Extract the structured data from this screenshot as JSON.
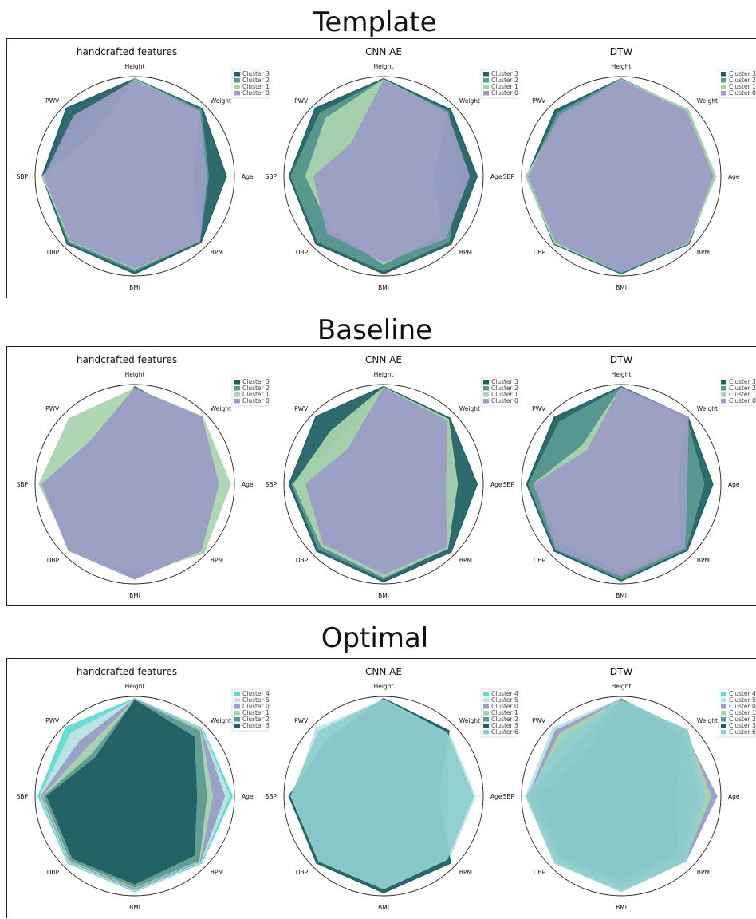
{
  "sections": [
    {
      "key": "template",
      "title": "Template"
    },
    {
      "key": "baseline",
      "title": "Baseline"
    },
    {
      "key": "optimal",
      "title": "Optimal"
    }
  ],
  "axes": [
    "Height",
    "Weight",
    "Age",
    "BPM",
    "BMI",
    "DBP",
    "SBP",
    "PWV"
  ],
  "colors": {
    "Cluster 0": "#9a9cc6",
    "Cluster 1": "#a9d4ad",
    "Cluster 2": "#5b9a92",
    "Cluster 3": "#1e5f63",
    "Cluster 4": "#5fdcd0",
    "Cluster 5": "#bfe3e6",
    "Cluster 6": "#8fcfd0"
  },
  "chart_data": [
    {
      "section": "template",
      "type": "radar",
      "title": "handcrafted features",
      "series": [
        {
          "name": "Cluster 3",
          "values": [
            0.98,
            0.96,
            0.92,
            0.94,
            0.98,
            0.96,
            0.93,
            0.97
          ]
        },
        {
          "name": "Cluster 2",
          "values": [
            0.98,
            0.94,
            0.74,
            0.92,
            0.95,
            0.94,
            0.92,
            0.78
          ]
        },
        {
          "name": "Cluster 1",
          "values": [
            0.97,
            0.92,
            0.58,
            0.92,
            0.93,
            0.92,
            0.93,
            0.58
          ]
        },
        {
          "name": "Cluster 0",
          "values": [
            0.96,
            0.92,
            0.72,
            0.92,
            0.92,
            0.91,
            0.91,
            0.86
          ]
        }
      ]
    },
    {
      "section": "template",
      "type": "radar",
      "title": "CNN AE",
      "series": [
        {
          "name": "Cluster 3",
          "values": [
            0.98,
            0.95,
            0.94,
            0.96,
            0.98,
            0.96,
            0.95,
            0.97
          ]
        },
        {
          "name": "Cluster 2",
          "values": [
            0.97,
            0.92,
            0.74,
            0.93,
            0.95,
            0.93,
            0.93,
            0.9
          ]
        },
        {
          "name": "Cluster 1",
          "values": [
            0.97,
            0.9,
            0.5,
            0.82,
            0.88,
            0.75,
            0.78,
            0.82
          ]
        },
        {
          "name": "Cluster 0",
          "values": [
            0.96,
            0.9,
            0.86,
            0.88,
            0.86,
            0.8,
            0.7,
            0.46
          ]
        }
      ]
    },
    {
      "section": "template",
      "type": "radar",
      "title": "DTW",
      "series": [
        {
          "name": "Cluster 3",
          "values": [
            0.98,
            0.94,
            0.94,
            0.96,
            0.98,
            0.96,
            0.95,
            0.94
          ]
        },
        {
          "name": "Cluster 2",
          "values": [
            0.98,
            0.93,
            0.93,
            0.95,
            0.97,
            0.95,
            0.94,
            0.9
          ]
        },
        {
          "name": "Cluster 1",
          "values": [
            0.97,
            0.95,
            0.95,
            0.95,
            0.96,
            0.95,
            0.96,
            0.85
          ]
        },
        {
          "name": "Cluster 0",
          "values": [
            0.96,
            0.92,
            0.92,
            0.94,
            0.96,
            0.93,
            0.93,
            0.87
          ]
        }
      ]
    },
    {
      "section": "baseline",
      "type": "radar",
      "title": "handcrafted features",
      "series": [
        {
          "name": "Cluster 3",
          "values": [
            0.98,
            0.88,
            0.8,
            0.87,
            0.93,
            0.91,
            0.9,
            0.55
          ]
        },
        {
          "name": "Cluster 2",
          "values": [
            0.97,
            0.86,
            0.76,
            0.85,
            0.92,
            0.9,
            0.88,
            0.52
          ]
        },
        {
          "name": "Cluster 1",
          "values": [
            0.96,
            0.96,
            0.96,
            0.98,
            0.9,
            0.92,
            0.96,
            0.93
          ]
        },
        {
          "name": "Cluster 0",
          "values": [
            0.96,
            0.95,
            0.84,
            0.94,
            0.95,
            0.94,
            0.93,
            0.62
          ]
        }
      ]
    },
    {
      "section": "baseline",
      "type": "radar",
      "title": "CNN AE",
      "series": [
        {
          "name": "Cluster 3",
          "values": [
            0.98,
            0.94,
            0.94,
            0.96,
            0.98,
            0.95,
            0.95,
            0.96
          ]
        },
        {
          "name": "Cluster 2",
          "values": [
            0.97,
            0.92,
            0.55,
            0.9,
            0.95,
            0.92,
            0.92,
            0.64
          ]
        },
        {
          "name": "Cluster 1",
          "values": [
            0.97,
            0.92,
            0.74,
            0.91,
            0.93,
            0.88,
            0.9,
            0.75
          ]
        },
        {
          "name": "Cluster 0",
          "values": [
            0.96,
            0.9,
            0.62,
            0.89,
            0.9,
            0.85,
            0.78,
            0.5
          ]
        }
      ]
    },
    {
      "section": "baseline",
      "type": "radar",
      "title": "DTW",
      "series": [
        {
          "name": "Cluster 3",
          "values": [
            0.98,
            0.95,
            0.92,
            0.94,
            0.97,
            0.95,
            0.95,
            0.95
          ]
        },
        {
          "name": "Cluster 2",
          "values": [
            0.97,
            0.93,
            0.83,
            0.92,
            0.95,
            0.93,
            0.93,
            0.88
          ]
        },
        {
          "name": "Cluster 1",
          "values": [
            0.97,
            0.92,
            0.56,
            0.85,
            0.88,
            0.85,
            0.88,
            0.55
          ]
        },
        {
          "name": "Cluster 0",
          "values": [
            0.97,
            0.95,
            0.66,
            0.9,
            0.92,
            0.92,
            0.87,
            0.48
          ]
        }
      ]
    },
    {
      "section": "optimal",
      "type": "radar",
      "title": "handcrafted features",
      "series": [
        {
          "name": "Cluster 4",
          "values": [
            0.98,
            0.96,
            0.98,
            0.95,
            0.96,
            0.95,
            0.97,
            0.98
          ]
        },
        {
          "name": "Cluster 5",
          "values": [
            0.97,
            0.95,
            0.95,
            0.94,
            0.95,
            0.94,
            0.95,
            0.9
          ]
        },
        {
          "name": "Cluster 0",
          "values": [
            0.97,
            0.94,
            0.9,
            0.93,
            0.94,
            0.93,
            0.94,
            0.78
          ]
        },
        {
          "name": "Cluster 1",
          "values": [
            0.96,
            0.93,
            0.78,
            0.92,
            0.92,
            0.92,
            0.92,
            0.68
          ]
        },
        {
          "name": "Cluster 2",
          "values": [
            0.96,
            0.92,
            0.72,
            0.91,
            0.91,
            0.91,
            0.91,
            0.6
          ]
        },
        {
          "name": "Cluster 3",
          "values": [
            0.96,
            0.84,
            0.62,
            0.84,
            0.88,
            0.88,
            0.88,
            0.55
          ]
        }
      ]
    },
    {
      "section": "optimal",
      "type": "radar",
      "title": "CNN AE",
      "series": [
        {
          "name": "Cluster 4",
          "values": [
            0.97,
            0.86,
            0.48,
            0.9,
            0.9,
            0.85,
            0.88,
            0.55
          ]
        },
        {
          "name": "Cluster 5",
          "values": [
            0.96,
            0.92,
            0.92,
            0.92,
            0.92,
            0.91,
            0.9,
            0.96
          ]
        },
        {
          "name": "Cluster 0",
          "values": [
            0.97,
            0.92,
            0.64,
            0.92,
            0.95,
            0.92,
            0.93,
            0.7
          ]
        },
        {
          "name": "Cluster 1",
          "values": [
            0.96,
            0.82,
            0.48,
            0.88,
            0.85,
            0.84,
            0.82,
            0.46
          ]
        },
        {
          "name": "Cluster 2",
          "values": [
            0.97,
            0.9,
            0.56,
            0.9,
            0.94,
            0.92,
            0.94,
            0.62
          ]
        },
        {
          "name": "Cluster 3",
          "values": [
            0.98,
            0.93,
            0.55,
            0.95,
            0.97,
            0.95,
            0.95,
            0.8
          ]
        },
        {
          "name": "Cluster 6",
          "values": [
            0.97,
            0.9,
            0.9,
            0.9,
            0.93,
            0.92,
            0.93,
            0.92
          ]
        }
      ]
    },
    {
      "section": "optimal",
      "type": "radar",
      "title": "DTW",
      "series": [
        {
          "name": "Cluster 4",
          "values": [
            0.98,
            0.92,
            0.92,
            0.92,
            0.94,
            0.94,
            0.96,
            0.96
          ]
        },
        {
          "name": "Cluster 5",
          "values": [
            0.98,
            0.92,
            0.92,
            0.92,
            0.96,
            0.95,
            0.96,
            0.97
          ]
        },
        {
          "name": "Cluster 0",
          "values": [
            0.97,
            0.9,
            0.96,
            0.92,
            0.9,
            0.9,
            0.93,
            0.93
          ]
        },
        {
          "name": "Cluster 1",
          "values": [
            0.97,
            0.92,
            0.9,
            0.9,
            0.91,
            0.9,
            0.92,
            0.88
          ]
        },
        {
          "name": "Cluster 2",
          "values": [
            0.97,
            0.9,
            0.78,
            0.86,
            0.89,
            0.88,
            0.92,
            0.7
          ]
        },
        {
          "name": "Cluster 3",
          "values": [
            0.97,
            0.86,
            0.55,
            0.8,
            0.84,
            0.86,
            0.85,
            0.55
          ]
        },
        {
          "name": "Cluster 6",
          "values": [
            0.96,
            0.94,
            0.84,
            0.92,
            0.95,
            0.94,
            0.95,
            0.82
          ]
        }
      ]
    }
  ]
}
